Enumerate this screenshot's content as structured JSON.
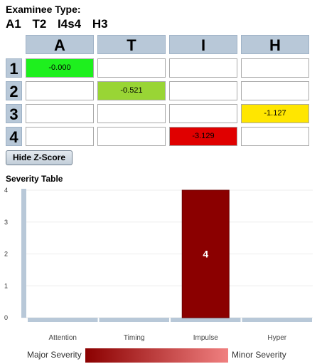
{
  "examinee": {
    "title": "Examinee Type:",
    "codes": [
      "A1",
      "T2",
      "I4s4",
      "H3"
    ]
  },
  "grid": {
    "columns": [
      "A",
      "T",
      "I",
      "H"
    ],
    "rows": [
      "1",
      "2",
      "3",
      "4"
    ],
    "cells": [
      [
        {
          "value": "-0.000",
          "color": "#1ef01e"
        },
        {
          "value": "",
          "color": "#ffffff"
        },
        {
          "value": "",
          "color": "#ffffff"
        },
        {
          "value": "",
          "color": "#ffffff"
        }
      ],
      [
        {
          "value": "",
          "color": "#ffffff"
        },
        {
          "value": "-0.521",
          "color": "#99d535"
        },
        {
          "value": "",
          "color": "#ffffff"
        },
        {
          "value": "",
          "color": "#ffffff"
        }
      ],
      [
        {
          "value": "",
          "color": "#ffffff"
        },
        {
          "value": "",
          "color": "#ffffff"
        },
        {
          "value": "",
          "color": "#ffffff"
        },
        {
          "value": "-1.127",
          "color": "#ffe600"
        }
      ],
      [
        {
          "value": "",
          "color": "#ffffff"
        },
        {
          "value": "",
          "color": "#ffffff"
        },
        {
          "value": "-3.129",
          "color": "#e00000"
        },
        {
          "value": "",
          "color": "#ffffff"
        }
      ]
    ]
  },
  "toggle_button": {
    "label": "Hide Z-Score"
  },
  "severity": {
    "title": "Severity Table",
    "legend_major": "Major Severity",
    "legend_minor": "Minor Severity",
    "legend_colors": [
      "#8b0000",
      "#f08080"
    ]
  },
  "chart_data": {
    "type": "bar",
    "categories": [
      "Attention",
      "Timing",
      "Impulse",
      "Hyper"
    ],
    "values": [
      0,
      0,
      4,
      0
    ],
    "data_labels": [
      "",
      "",
      "4",
      ""
    ],
    "bar_color": "#8b0000",
    "baseline_color": "#b8c8d8",
    "ylim": [
      0,
      4
    ],
    "yticks": [
      0,
      1,
      2,
      3,
      4
    ],
    "grid": true,
    "legend": "bottom"
  }
}
